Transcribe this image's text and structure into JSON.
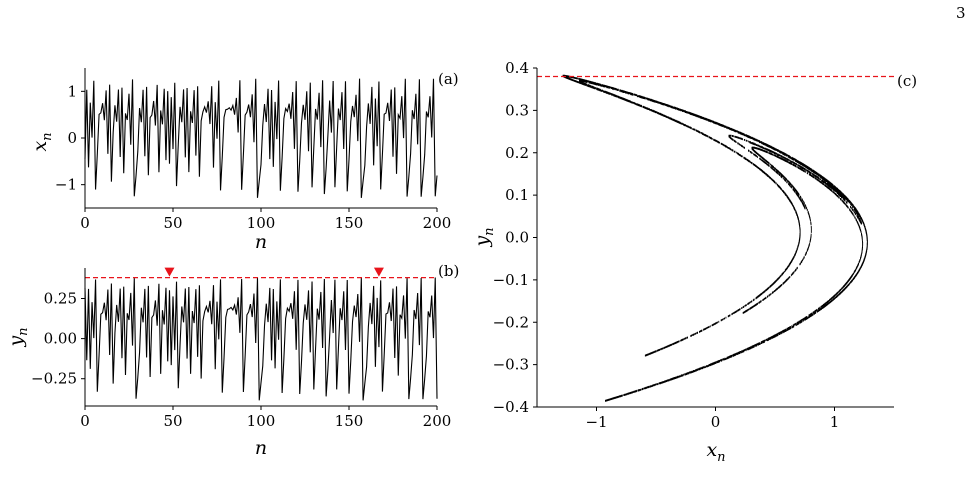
{
  "page": {
    "number": "3"
  },
  "colors": {
    "series": "#000000",
    "threshold": "#e8141b",
    "marker": "#e8141b",
    "background": "#ffffff"
  },
  "chart_data": [
    {
      "id": "a",
      "type": "line",
      "panel_label": "(a)",
      "xlabel": "n",
      "ylabel": "x",
      "ylabel_sub": "n",
      "xlim": [
        0,
        200
      ],
      "ylim": [
        -1.5,
        1.5
      ],
      "xticks": [
        0,
        50,
        100,
        150,
        200
      ],
      "xtick_labels": [
        "0",
        "50",
        "100",
        "150",
        "200"
      ],
      "yticks": [
        -1,
        0,
        1
      ],
      "ytick_labels": [
        "−1",
        "0",
        "1"
      ],
      "series_seed": 0.12,
      "series_note_points": 201
    },
    {
      "id": "b",
      "type": "line",
      "panel_label": "(b)",
      "xlabel": "n",
      "ylabel": "y",
      "ylabel_sub": "n",
      "xlim": [
        0,
        200
      ],
      "ylim": [
        -0.42,
        0.44
      ],
      "xticks": [
        0,
        50,
        100,
        150,
        200
      ],
      "xtick_labels": [
        "0",
        "50",
        "100",
        "150",
        "200"
      ],
      "yticks": [
        -0.25,
        0.0,
        0.25
      ],
      "ytick_labels": [
        "−0.25",
        "0.00",
        "0.25"
      ],
      "threshold": 0.38,
      "markers_x": [
        48,
        167
      ]
    },
    {
      "id": "c",
      "type": "scatter",
      "panel_label": "(c)",
      "xlabel": "x",
      "xlabel_sub": "n",
      "ylabel": "y",
      "ylabel_sub": "n",
      "xlim": [
        -1.5,
        1.5
      ],
      "ylim": [
        -0.4,
        0.4
      ],
      "xticks": [
        -1,
        0,
        1
      ],
      "xtick_labels": [
        "−1",
        "0",
        "1"
      ],
      "yticks": [
        -0.4,
        -0.3,
        -0.2,
        -0.1,
        0.0,
        0.1,
        0.2,
        0.3,
        0.4
      ],
      "ytick_labels": [
        "−0.4",
        "−0.3",
        "−0.2",
        "−0.1",
        "0.0",
        "0.1",
        "0.2",
        "0.3",
        "0.4"
      ],
      "threshold": 0.38,
      "map": {
        "a": 1.4,
        "b": 0.3
      }
    }
  ]
}
